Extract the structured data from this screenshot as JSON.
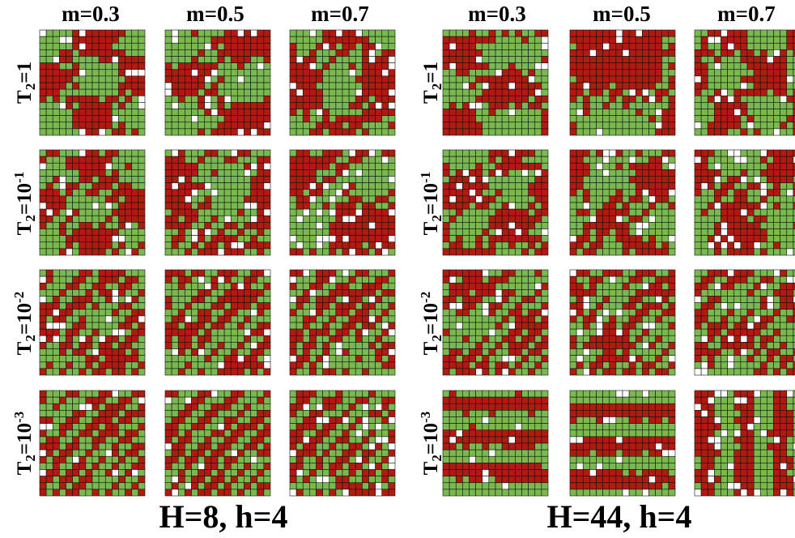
{
  "colors": {
    "spin_up": "#b01a10",
    "spin_down": "#7ab850",
    "vacancy": "#ffffff",
    "grid": "#111111"
  },
  "columns": [
    "m=0.3",
    "m=0.5",
    "m=0.7"
  ],
  "rows": [
    {
      "prefix": "T",
      "sub": "2",
      "eq": "=1",
      "sup": ""
    },
    {
      "prefix": "T",
      "sub": "2",
      "eq": "=10",
      "sup": "-1"
    },
    {
      "prefix": "T",
      "sub": "2",
      "eq": "=10",
      "sup": "-2"
    },
    {
      "prefix": "T",
      "sub": "2",
      "eq": "=10",
      "sup": "-3"
    }
  ],
  "panels": [
    {
      "caption": "H=8, h=4"
    },
    {
      "caption": "H=44, h=4"
    }
  ],
  "lattice": {
    "cells_per_side": 16,
    "states": [
      "spin_up",
      "spin_down",
      "vacancy"
    ]
  }
}
